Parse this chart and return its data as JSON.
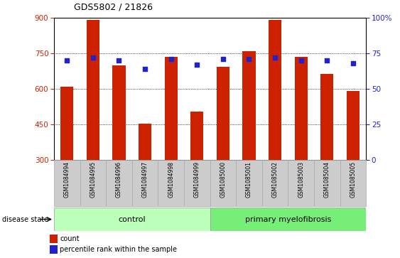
{
  "title": "GDS5802 / 21826",
  "samples": [
    "GSM1084994",
    "GSM1084995",
    "GSM1084996",
    "GSM1084997",
    "GSM1084998",
    "GSM1084999",
    "GSM1085000",
    "GSM1085001",
    "GSM1085002",
    "GSM1085003",
    "GSM1085004",
    "GSM1085005"
  ],
  "counts": [
    610,
    893,
    700,
    452,
    735,
    505,
    695,
    760,
    893,
    735,
    665,
    592
  ],
  "percentiles": [
    70,
    72,
    70,
    64,
    71,
    67,
    71,
    71,
    72,
    70,
    70,
    68
  ],
  "y_min": 300,
  "y_max": 900,
  "y_ticks": [
    300,
    450,
    600,
    750,
    900
  ],
  "right_y_ticks": [
    0,
    25,
    50,
    75,
    100
  ],
  "right_y_labels": [
    "0",
    "25",
    "50",
    "75",
    "100%"
  ],
  "bar_color": "#cc2200",
  "dot_color": "#2222cc",
  "control_count": 6,
  "primary_count": 6,
  "control_label": "control",
  "primary_label": "primary myelofibrosis",
  "disease_state_label": "disease state",
  "legend_count_label": "count",
  "legend_percentile_label": "percentile rank within the sample",
  "tick_label_color_left": "#cc2200",
  "tick_label_color_right": "#2222cc",
  "grid_color": "#000000",
  "control_box_color": "#bbffbb",
  "primary_box_color": "#77ee77",
  "sample_box_color": "#cccccc",
  "bar_width": 0.5
}
